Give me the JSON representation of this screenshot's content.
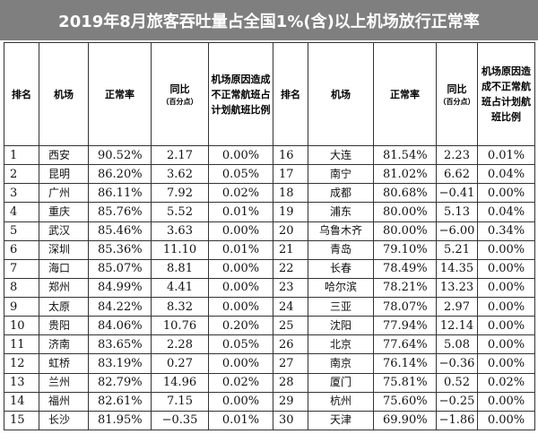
{
  "title": "2019年8月旅客吞吐量占全国1%(含)以上机场放行正常率",
  "headers": {
    "rank": "排名",
    "airport": "机场",
    "rate": "正常率",
    "yoy": "同比",
    "yoy_unit": "（百分点）",
    "ratio": "机场原因造成不正常航班占计划航班比例"
  },
  "left_rows": [
    {
      "rank": "1",
      "airport": "西安",
      "rate": "90.52%",
      "yoy": "2.17",
      "ratio": "0.00%"
    },
    {
      "rank": "2",
      "airport": "昆明",
      "rate": "86.20%",
      "yoy": "3.62",
      "ratio": "0.05%"
    },
    {
      "rank": "3",
      "airport": "广州",
      "rate": "86.11%",
      "yoy": "7.92",
      "ratio": "0.02%"
    },
    {
      "rank": "4",
      "airport": "重庆",
      "rate": "85.76%",
      "yoy": "5.52",
      "ratio": "0.01%"
    },
    {
      "rank": "5",
      "airport": "武汉",
      "rate": "85.46%",
      "yoy": "3.63",
      "ratio": "0.00%"
    },
    {
      "rank": "6",
      "airport": "深圳",
      "rate": "85.36%",
      "yoy": "11.10",
      "ratio": "0.01%"
    },
    {
      "rank": "7",
      "airport": "海口",
      "rate": "85.07%",
      "yoy": "8.81",
      "ratio": "0.00%"
    },
    {
      "rank": "8",
      "airport": "郑州",
      "rate": "84.99%",
      "yoy": "4.41",
      "ratio": "0.00%"
    },
    {
      "rank": "9",
      "airport": "太原",
      "rate": "84.22%",
      "yoy": "8.32",
      "ratio": "0.00%"
    },
    {
      "rank": "10",
      "airport": "贵阳",
      "rate": "84.06%",
      "yoy": "10.76",
      "ratio": "0.20%"
    },
    {
      "rank": "11",
      "airport": "济南",
      "rate": "83.65%",
      "yoy": "2.28",
      "ratio": "0.05%"
    },
    {
      "rank": "12",
      "airport": "虹桥",
      "rate": "83.19%",
      "yoy": "0.27",
      "ratio": "0.00%"
    },
    {
      "rank": "13",
      "airport": "兰州",
      "rate": "82.79%",
      "yoy": "14.96",
      "ratio": "0.02%"
    },
    {
      "rank": "14",
      "airport": "福州",
      "rate": "82.61%",
      "yoy": "7.15",
      "ratio": "0.00%"
    },
    {
      "rank": "15",
      "airport": "长沙",
      "rate": "81.95%",
      "yoy": "−0.35",
      "ratio": "0.01%"
    }
  ],
  "right_rows": [
    {
      "rank": "16",
      "airport": "大连",
      "rate": "81.54%",
      "yoy": "2.23",
      "ratio": "0.01%"
    },
    {
      "rank": "17",
      "airport": "南宁",
      "rate": "81.02%",
      "yoy": "6.62",
      "ratio": "0.04%"
    },
    {
      "rank": "18",
      "airport": "成都",
      "rate": "80.68%",
      "yoy": "−0.41",
      "ratio": "0.00%"
    },
    {
      "rank": "19",
      "airport": "浦东",
      "rate": "80.00%",
      "yoy": "5.13",
      "ratio": "0.04%"
    },
    {
      "rank": "20",
      "airport": "乌鲁木齐",
      "rate": "80.00%",
      "yoy": "−6.00",
      "ratio": "0.34%"
    },
    {
      "rank": "21",
      "airport": "青岛",
      "rate": "79.10%",
      "yoy": "5.21",
      "ratio": "0.00%"
    },
    {
      "rank": "22",
      "airport": "长春",
      "rate": "78.49%",
      "yoy": "14.35",
      "ratio": "0.00%"
    },
    {
      "rank": "23",
      "airport": "哈尔滨",
      "rate": "78.21%",
      "yoy": "13.23",
      "ratio": "0.00%"
    },
    {
      "rank": "24",
      "airport": "三亚",
      "rate": "78.07%",
      "yoy": "2.97",
      "ratio": "0.00%"
    },
    {
      "rank": "25",
      "airport": "沈阳",
      "rate": "77.94%",
      "yoy": "12.14",
      "ratio": "0.00%"
    },
    {
      "rank": "26",
      "airport": "北京",
      "rate": "77.64%",
      "yoy": "5.08",
      "ratio": "0.00%"
    },
    {
      "rank": "27",
      "airport": "南京",
      "rate": "76.14%",
      "yoy": "−0.36",
      "ratio": "0.00%"
    },
    {
      "rank": "28",
      "airport": "厦门",
      "rate": "75.81%",
      "yoy": "0.52",
      "ratio": "0.02%"
    },
    {
      "rank": "29",
      "airport": "杭州",
      "rate": "75.60%",
      "yoy": "−0.25",
      "ratio": "0.00%"
    },
    {
      "rank": "30",
      "airport": "天津",
      "rate": "69.90%",
      "yoy": "−1.86",
      "ratio": "0.00%"
    }
  ],
  "colors": {
    "title_bg": "#7f7f7f",
    "title_text": "#ffffff",
    "border": "#333333"
  }
}
